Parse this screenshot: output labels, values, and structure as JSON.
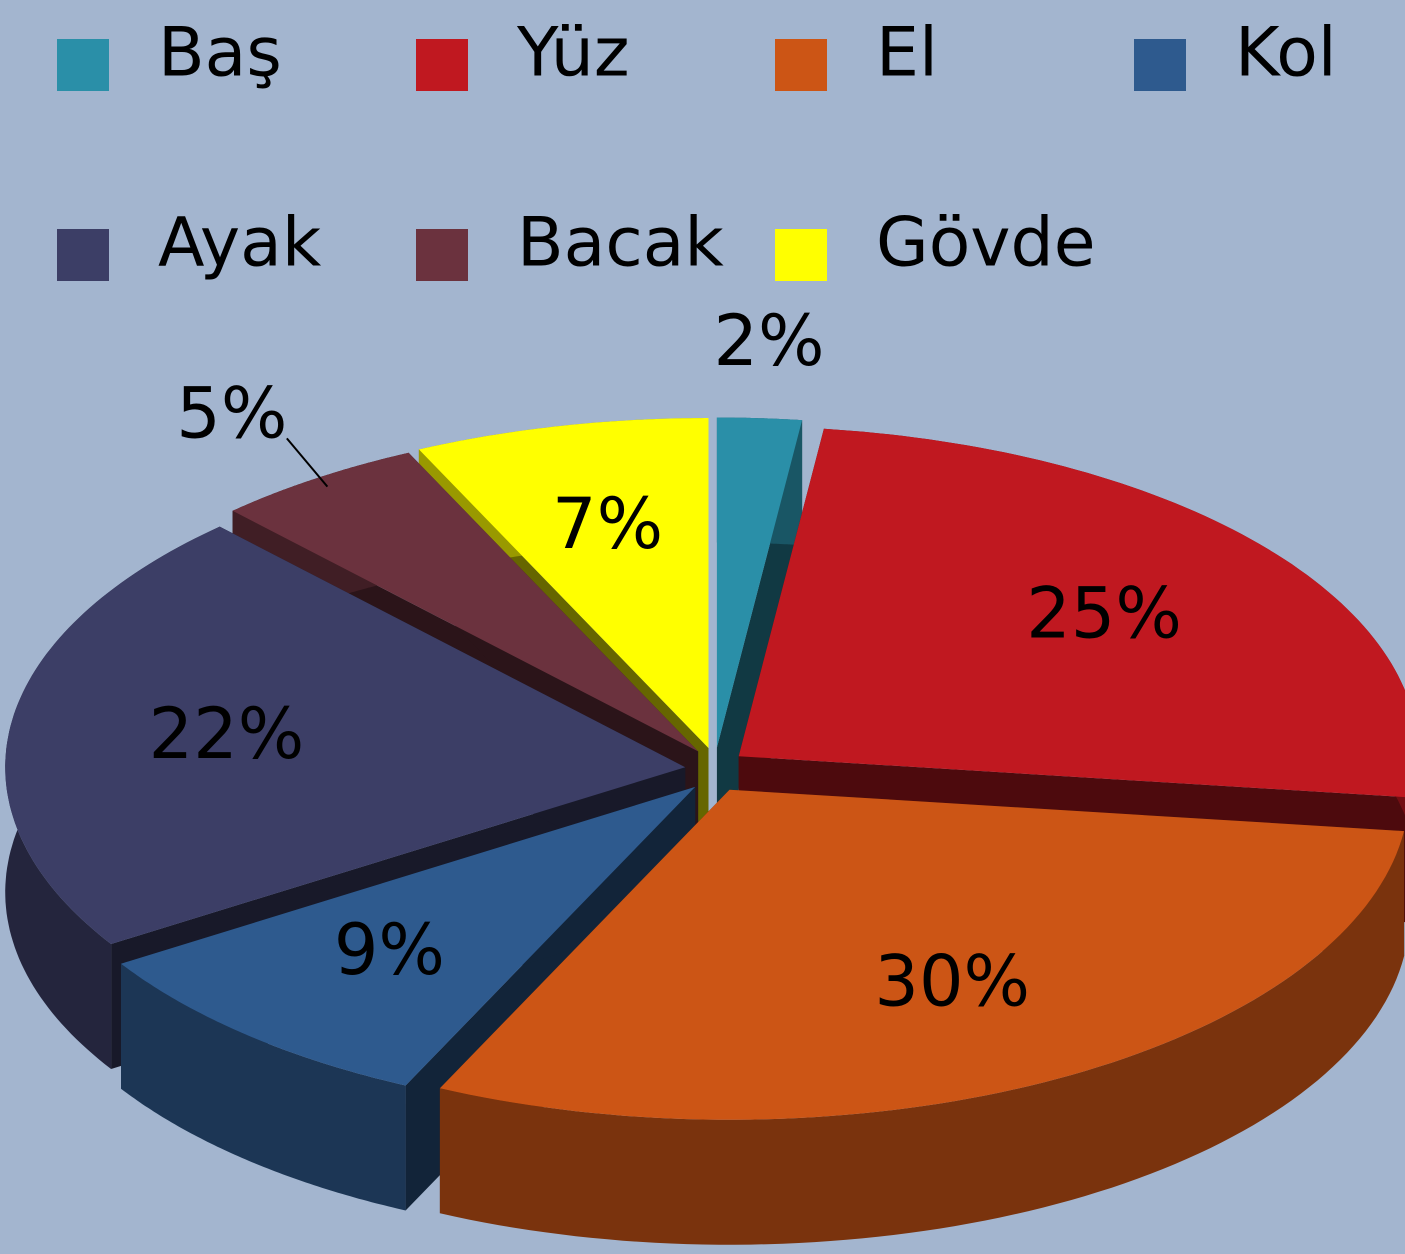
{
  "chart_data": {
    "type": "pie",
    "categories": [
      "Baş",
      "Yüz",
      "El",
      "Kol",
      "Ayak",
      "Bacak",
      "Gövde"
    ],
    "values": [
      2,
      25,
      30,
      9,
      22,
      5,
      7
    ],
    "value_labels": [
      "2%",
      "25%",
      "30%",
      "9%",
      "22%",
      "5%",
      "7%"
    ],
    "colors": [
      "#2a8fa8",
      "#c01820",
      "#cc5515",
      "#2e5a8e",
      "#3c3e66",
      "#6b323e",
      "#ffff00"
    ]
  }
}
